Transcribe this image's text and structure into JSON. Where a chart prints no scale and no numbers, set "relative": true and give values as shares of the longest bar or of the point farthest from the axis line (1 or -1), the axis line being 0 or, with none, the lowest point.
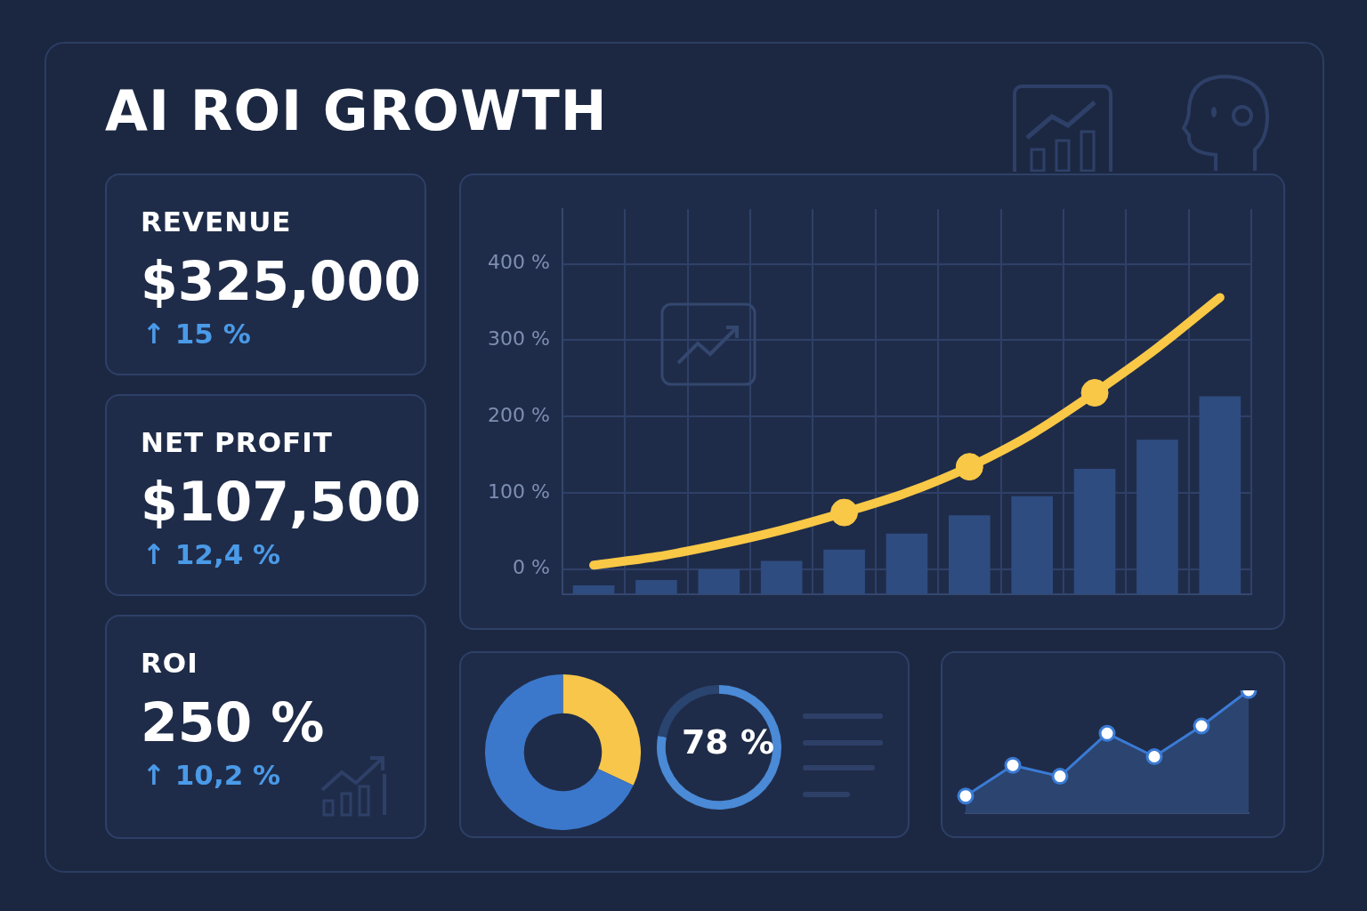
{
  "chart_data": [
    {
      "type": "other",
      "title": "AI ROI GROWTH",
      "annotations": [
        "REVENUE",
        "$325,000",
        "↑ 15 %",
        "NET PROFIT",
        "$107,500",
        "↑ 12,4 %",
        "ROI",
        "250 %",
        "↑ 10,2 %"
      ]
    },
    {
      "type": "bar",
      "categories": [
        null,
        null,
        null,
        null,
        null,
        null,
        null,
        null,
        null,
        null,
        null
      ],
      "ylim": [
        -33,
        472
      ],
      "yticks": [
        {
          "value": 0,
          "label": "0 %"
        },
        {
          "value": 100,
          "label": "100 %"
        },
        {
          "value": 200,
          "label": "200 %"
        },
        {
          "value": 300,
          "label": "300 %"
        },
        {
          "value": 400,
          "label": "400 %"
        }
      ],
      "grid": true,
      "tick_labels": "y",
      "series": [
        {
          "type": "bar",
          "color": "#2e4c80",
          "base": [
            -33,
            -33,
            -33,
            -33,
            -33,
            -33,
            -33,
            -33,
            -33,
            -33,
            -33
          ],
          "values": [
            11,
            18,
            32,
            43,
            58,
            79,
            103,
            128,
            164,
            202,
            259
          ]
        },
        {
          "type": "line",
          "color": "#f9c846",
          "values": [
            5,
            16,
            32,
            51,
            74,
            100,
            134,
            177,
            231,
            290,
            356
          ],
          "marker": "none"
        },
        {
          "type": "scatter",
          "color": "#f9c846",
          "values": [
            null,
            null,
            null,
            null,
            74,
            null,
            134,
            null,
            231,
            null,
            null
          ],
          "marker": "circle"
        }
      ]
    },
    {
      "type": "donut",
      "categories": [
        null,
        null
      ],
      "values": [
        32,
        68
      ],
      "colors": [
        "#f8c64a",
        "#3b78cc"
      ]
    },
    {
      "type": "donut",
      "categories": [
        null,
        null
      ],
      "values": [
        78,
        22
      ],
      "colors": [
        "#4a8ad6",
        "#2a4470"
      ],
      "annotations": [
        "78 %"
      ]
    },
    {
      "type": "area",
      "relative": true,
      "categories": [
        null,
        null,
        null,
        null,
        null,
        null,
        null
      ],
      "values": [
        0.14,
        0.39,
        0.3,
        0.65,
        0.46,
        0.71,
        1
      ],
      "color": "#3a7bd5",
      "marker": "circle"
    }
  ]
}
